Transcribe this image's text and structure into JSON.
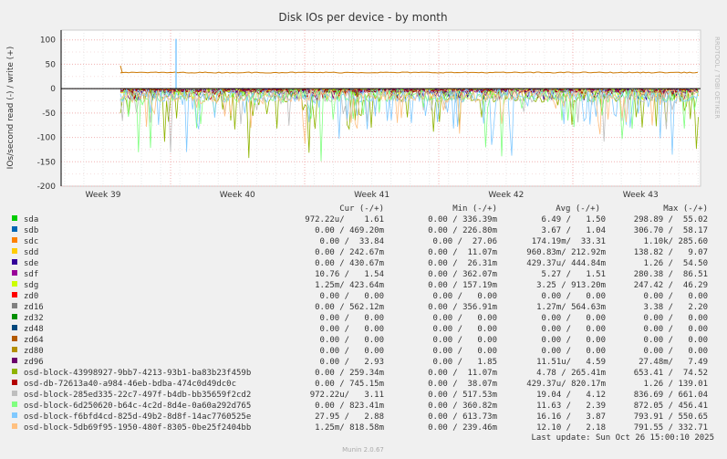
{
  "chart_data": {
    "type": "line",
    "title": "Disk IOs per device - by month",
    "ylabel": "IOs/second read (-) / write (+)",
    "yticks": [
      "100",
      "50",
      "0",
      "-50",
      "-100",
      "-150",
      "-200"
    ],
    "ylim": [
      -200,
      120
    ],
    "xticks": [
      "Week 39",
      "Week 40",
      "Week 41",
      "Week 42",
      "Week 43"
    ],
    "columns": [
      "Cur (-/+)",
      "Min (-/+)",
      "Avg (-/+)",
      "Max (-/+)"
    ],
    "series": [
      {
        "name": "sda",
        "color": "#00cc00",
        "cur": "972.22u/    1.61",
        "min": "0.00 / 336.39m",
        "avg": "6.49 /   1.50",
        "max": "298.89 /  55.02"
      },
      {
        "name": "sdb",
        "color": "#0066b3",
        "cur": "0.00 / 469.20m",
        "min": "0.00 / 226.80m",
        "avg": "3.67 /   1.04",
        "max": "306.70 /  58.17"
      },
      {
        "name": "sdc",
        "color": "#ff8000",
        "cur": "0.00 /  33.84",
        "min": "0.00 /  27.06",
        "avg": "174.19m/  33.31",
        "max": "1.10k/ 285.60"
      },
      {
        "name": "sdd",
        "color": "#ffcc00",
        "cur": "0.00 / 242.67m",
        "min": "0.00 /  11.07m",
        "avg": "960.83m/ 212.92m",
        "max": "138.82 /   9.07"
      },
      {
        "name": "sde",
        "color": "#330099",
        "cur": "0.00 / 430.67m",
        "min": "0.00 /  26.31m",
        "avg": "429.37u/ 444.84m",
        "max": "1.26 /  54.50"
      },
      {
        "name": "sdf",
        "color": "#990099",
        "cur": "10.76 /   1.54",
        "min": "0.00 / 362.07m",
        "avg": "5.27 /   1.51",
        "max": "280.38 /  86.51"
      },
      {
        "name": "sdg",
        "color": "#ccff00",
        "cur": "1.25m/ 423.64m",
        "min": "0.00 / 157.19m",
        "avg": "3.25 / 913.20m",
        "max": "247.42 /  46.29"
      },
      {
        "name": "zd0",
        "color": "#ff0000",
        "cur": "0.00 /   0.00",
        "min": "0.00 /   0.00",
        "avg": "0.00 /   0.00",
        "max": "0.00 /   0.00"
      },
      {
        "name": "zd16",
        "color": "#808080",
        "cur": "0.00 / 562.12m",
        "min": "0.00 / 356.91m",
        "avg": "1.27m/ 564.63m",
        "max": "3.38 /   2.20"
      },
      {
        "name": "zd32",
        "color": "#008f00",
        "cur": "0.00 /   0.00",
        "min": "0.00 /   0.00",
        "avg": "0.00 /   0.00",
        "max": "0.00 /   0.00"
      },
      {
        "name": "zd48",
        "color": "#00487d",
        "cur": "0.00 /   0.00",
        "min": "0.00 /   0.00",
        "avg": "0.00 /   0.00",
        "max": "0.00 /   0.00"
      },
      {
        "name": "zd64",
        "color": "#b35a00",
        "cur": "0.00 /   0.00",
        "min": "0.00 /   0.00",
        "avg": "0.00 /   0.00",
        "max": "0.00 /   0.00"
      },
      {
        "name": "zd80",
        "color": "#b38f00",
        "cur": "0.00 /   0.00",
        "min": "0.00 /   0.00",
        "avg": "0.00 /   0.00",
        "max": "0.00 /   0.00"
      },
      {
        "name": "zd96",
        "color": "#6b006b",
        "cur": "0.00 /   2.93",
        "min": "0.00 /   1.85",
        "avg": "11.51u/   4.59",
        "max": "27.48m/   7.49"
      },
      {
        "name": "osd-block-43998927-9bb7-4213-93b1-ba83b23f459b",
        "color": "#8fb300",
        "cur": "0.00 / 259.34m",
        "min": "0.00 /  11.07m",
        "avg": "4.78 / 265.41m",
        "max": "653.41 /  74.52"
      },
      {
        "name": "osd-db-72613a40-a984-46eb-bdba-474c0d49dc0c",
        "color": "#b30000",
        "cur": "0.00 / 745.15m",
        "min": "0.00 /  38.07m",
        "avg": "429.37u/ 820.17m",
        "max": "1.26 / 139.01"
      },
      {
        "name": "osd-block-285ed335-22c7-497f-b4db-bb35659f2cd2",
        "color": "#bebebe",
        "cur": "972.22u/   3.11",
        "min": "0.00 / 517.53m",
        "avg": "19.04 /   4.12",
        "max": "836.69 / 661.04"
      },
      {
        "name": "osd-block-6d250620-b64c-4c2d-8d4e-0a60a292d765",
        "color": "#80ff80",
        "cur": "0.00 / 823.41m",
        "min": "0.00 / 360.82m",
        "avg": "11.63 /   2.39",
        "max": "872.05 / 456.41"
      },
      {
        "name": "osd-block-f6bfd4cd-825d-49b2-8d8f-14ac7760525e",
        "color": "#80c9ff",
        "cur": "27.95 /   2.88",
        "min": "0.00 / 613.73m",
        "avg": "16.16 /   3.87",
        "max": "793.91 / 550.65"
      },
      {
        "name": "osd-block-5db69f95-1950-480f-8305-0be25f2404bb",
        "color": "#ffc080",
        "cur": "1.25m/ 818.58m",
        "min": "0.00 / 239.46m",
        "avg": "12.10 /   2.18",
        "max": "791.55 / 332.71"
      }
    ],
    "last_update": "Last update: Sun Oct 26 15:00:10 2025",
    "footer": "Munin 2.0.67",
    "side_text": "RRDTOOL / TOBI OETIKER"
  }
}
